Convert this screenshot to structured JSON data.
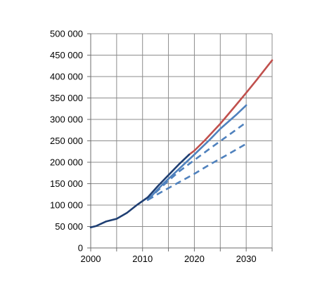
{
  "chart_data": {
    "type": "line",
    "title": "",
    "xlabel": "",
    "ylabel": "",
    "xlim": [
      2000,
      2035
    ],
    "ylim": [
      0,
      500000
    ],
    "x_ticks": [
      {
        "value": 2000,
        "label": "2000"
      },
      {
        "value": 2010,
        "label": "2010"
      },
      {
        "value": 2020,
        "label": "2020"
      },
      {
        "value": 2030,
        "label": "2030"
      }
    ],
    "x_grid": [
      2000,
      2005,
      2010,
      2015,
      2020,
      2025,
      2030,
      2035
    ],
    "y_ticks": [
      {
        "value": 0,
        "label": "0"
      },
      {
        "value": 50000,
        "label": "50 000"
      },
      {
        "value": 100000,
        "label": "100 000"
      },
      {
        "value": 150000,
        "label": "150 000"
      },
      {
        "value": 200000,
        "label": "200 000"
      },
      {
        "value": 250000,
        "label": "250 000"
      },
      {
        "value": 300000,
        "label": "300 000"
      },
      {
        "value": 350000,
        "label": "350 000"
      },
      {
        "value": 400000,
        "label": "400 000"
      },
      {
        "value": 450000,
        "label": "450 000"
      },
      {
        "value": 500000,
        "label": "500 000"
      }
    ],
    "grid": true,
    "legend": "none",
    "series": [
      {
        "color": "#c0504d",
        "style": "solid",
        "x": [
          2019,
          2020,
          2022,
          2025,
          2028,
          2030,
          2032,
          2035
        ],
        "y": [
          218000,
          227000,
          251000,
          290000,
          333000,
          362000,
          392000,
          438000
        ]
      },
      {
        "color": "#4f81bd",
        "style": "solid",
        "x": [
          2011,
          2014,
          2017,
          2020,
          2023,
          2025,
          2028,
          2030
        ],
        "y": [
          112000,
          150000,
          184000,
          218000,
          253000,
          278000,
          310000,
          333000
        ]
      },
      {
        "color": "#4f81bd",
        "style": "dashed",
        "x": [
          2011,
          2014,
          2017,
          2020,
          2023,
          2026,
          2030
        ],
        "y": [
          112000,
          146000,
          178000,
          205000,
          232000,
          258000,
          293000
        ]
      },
      {
        "color": "#4f81bd",
        "style": "dashed",
        "x": [
          2011,
          2014,
          2017,
          2020,
          2023,
          2026,
          2030
        ],
        "y": [
          112000,
          133000,
          153000,
          173000,
          195000,
          215000,
          243000
        ]
      },
      {
        "color": "#1f3f73",
        "style": "solid",
        "x": [
          2000,
          2001,
          2003,
          2005,
          2007,
          2009,
          2011,
          2013,
          2015,
          2017,
          2019
        ],
        "y": [
          48000,
          51000,
          62000,
          68000,
          82000,
          101000,
          118000,
          145000,
          170000,
          195000,
          218000
        ]
      }
    ]
  }
}
